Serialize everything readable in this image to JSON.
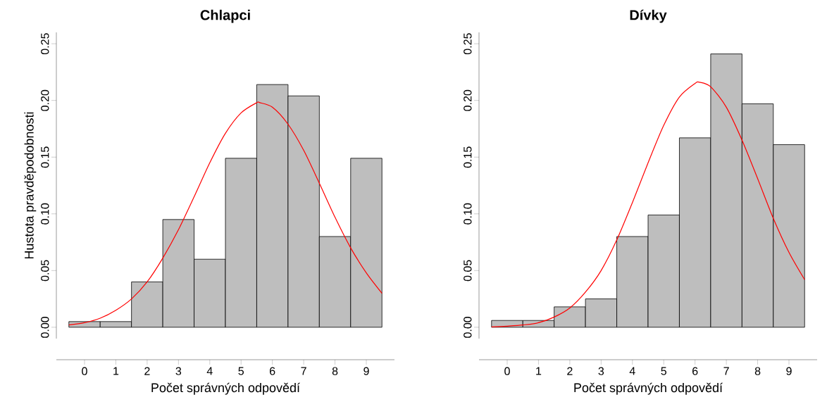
{
  "chart_data": [
    {
      "type": "histogram",
      "title": "Chlapci",
      "xlabel": "Počet správných odpovědí",
      "ylabel": "Hustota pravděpodobnosti",
      "xlim": [
        -0.9,
        9.9
      ],
      "ylim": [
        -0.01,
        0.26
      ],
      "xticks": [
        0,
        1,
        2,
        3,
        4,
        5,
        6,
        7,
        8,
        9
      ],
      "yticks": [
        {
          "value": 0,
          "label": "0.00"
        },
        {
          "value": 0.05,
          "label": "0.05"
        },
        {
          "value": 0.1,
          "label": "0.10"
        },
        {
          "value": 0.15,
          "label": "0.15"
        },
        {
          "value": 0.2,
          "label": "0.20"
        },
        {
          "value": 0.25,
          "label": "0.25"
        }
      ],
      "series": [
        {
          "type": "histogram",
          "color": "#bebebe",
          "bins": [
            -0.5,
            0.5,
            1.5,
            2.5,
            3.5,
            4.5,
            5.5,
            6.5,
            7.5,
            8.5,
            9.5
          ],
          "values": [
            0.005,
            0.005,
            0.04,
            0.095,
            0.06,
            0.149,
            0.214,
            0.204,
            0.08,
            0.149
          ]
        },
        {
          "type": "line",
          "color": "#ff0000",
          "x": [
            -0.5,
            0,
            0.5,
            1,
            1.5,
            2,
            2.5,
            3,
            3.5,
            4,
            4.5,
            5,
            5.5,
            5.6,
            6,
            6.5,
            7,
            7.5,
            8,
            8.5,
            9,
            9.5
          ],
          "values": [
            0.002,
            0.004,
            0.008,
            0.015,
            0.025,
            0.04,
            0.061,
            0.086,
            0.115,
            0.145,
            0.171,
            0.189,
            0.198,
            0.198,
            0.194,
            0.179,
            0.156,
            0.127,
            0.097,
            0.07,
            0.048,
            0.03
          ]
        }
      ]
    },
    {
      "type": "histogram",
      "title": "Dívky",
      "xlabel": "Počet správných odpovědí",
      "xlim": [
        -0.9,
        9.9
      ],
      "ylim": [
        -0.01,
        0.26
      ],
      "xticks": [
        0,
        1,
        2,
        3,
        4,
        5,
        6,
        7,
        8,
        9
      ],
      "yticks": [
        {
          "value": 0,
          "label": "0.00"
        },
        {
          "value": 0.05,
          "label": "0.05"
        },
        {
          "value": 0.1,
          "label": "0.10"
        },
        {
          "value": 0.15,
          "label": "0.15"
        },
        {
          "value": 0.2,
          "label": "0.20"
        },
        {
          "value": 0.25,
          "label": "0.25"
        }
      ],
      "series": [
        {
          "type": "histogram",
          "color": "#bebebe",
          "bins": [
            -0.5,
            0.5,
            1.5,
            2.5,
            3.5,
            4.5,
            5.5,
            6.5,
            7.5,
            8.5,
            9.5
          ],
          "values": [
            0.006,
            0.006,
            0.018,
            0.025,
            0.08,
            0.099,
            0.167,
            0.241,
            0.197,
            0.161
          ]
        },
        {
          "type": "line",
          "color": "#ff0000",
          "x": [
            -0.5,
            0,
            0.5,
            1,
            1.5,
            2,
            2.5,
            3,
            3.5,
            4,
            4.5,
            5,
            5.5,
            6,
            6.15,
            6.5,
            7,
            7.5,
            8,
            8.5,
            9,
            9.5
          ],
          "values": [
            0.0003,
            0.001,
            0.002,
            0.004,
            0.009,
            0.017,
            0.031,
            0.05,
            0.077,
            0.11,
            0.145,
            0.178,
            0.203,
            0.215,
            0.216,
            0.212,
            0.194,
            0.165,
            0.131,
            0.096,
            0.066,
            0.042
          ]
        }
      ]
    }
  ]
}
